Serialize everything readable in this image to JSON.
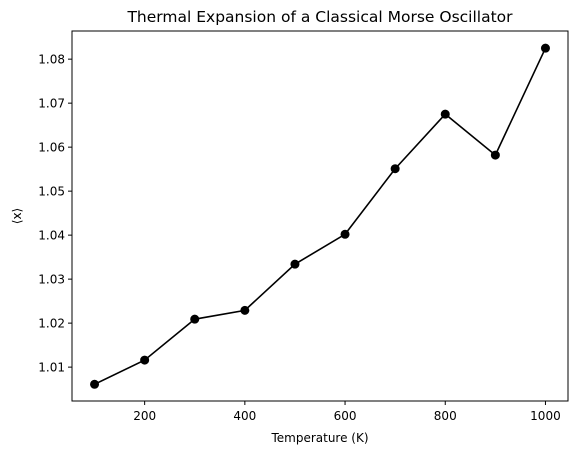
{
  "chart_data": {
    "type": "line",
    "title": "Thermal Expansion of a Classical Morse Oscillator",
    "xlabel": "Temperature (K)",
    "ylabel": "⟨x⟩",
    "x": [
      100,
      200,
      300,
      400,
      500,
      600,
      700,
      800,
      900,
      1000
    ],
    "series": [
      {
        "values": [
          1.0061,
          1.0116,
          1.0209,
          1.0229,
          1.0334,
          1.0402,
          1.0551,
          1.0675,
          1.0582,
          1.0825
        ]
      }
    ],
    "xlim": [
      55,
      1045
    ],
    "ylim": [
      1.0023,
      1.0864
    ],
    "xticks": [
      200,
      400,
      600,
      800,
      1000
    ],
    "xtick_labels": [
      "200",
      "400",
      "600",
      "800",
      "1000"
    ],
    "yticks": [
      1.01,
      1.02,
      1.03,
      1.04,
      1.05,
      1.06,
      1.07,
      1.08
    ],
    "ytick_labels": [
      "1.01",
      "1.02",
      "1.03",
      "1.04",
      "1.05",
      "1.06",
      "1.07",
      "1.08"
    ],
    "grid": false,
    "line_color": "#000000",
    "marker": "circle"
  }
}
